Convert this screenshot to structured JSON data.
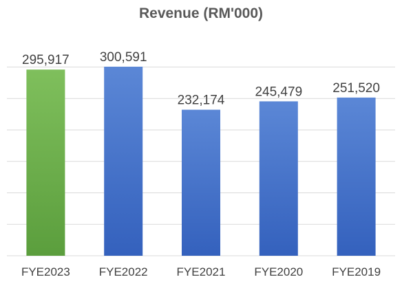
{
  "chart_data": {
    "type": "bar",
    "title": "Revenue (RM'000)",
    "categories": [
      "FYE2023",
      "FYE2022",
      "FYE2021",
      "FYE2020",
      "FYE2019"
    ],
    "values": [
      295917,
      300591,
      232174,
      245479,
      251520
    ],
    "data_labels": [
      "295,917",
      "300,591",
      "232,174",
      "245,479",
      "251,520"
    ],
    "ylim": [
      0,
      300000
    ],
    "grid": true,
    "legend": "none",
    "colors": {
      "highlight": [
        "#7fbf5c",
        "#5b9e3d"
      ],
      "default": [
        "#5b87d6",
        "#3461bd"
      ]
    },
    "highlight_index": 0
  }
}
